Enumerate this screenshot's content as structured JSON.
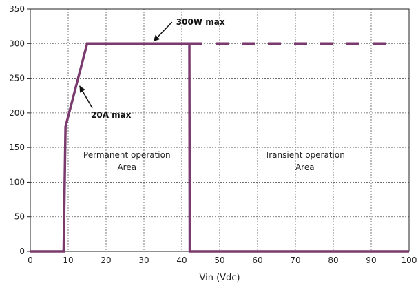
{
  "chart_data": {
    "type": "line",
    "title": "",
    "xlabel": "Vin (Vdc)",
    "ylabel": "",
    "xlim": [
      0,
      100
    ],
    "ylim": [
      0,
      350
    ],
    "xticks": [
      "0",
      "10",
      "20",
      "30",
      "40",
      "50",
      "60",
      "70",
      "80",
      "90",
      "100"
    ],
    "yticks": [
      "0",
      "50",
      "100",
      "150",
      "200",
      "250",
      "300",
      "350"
    ],
    "grid": true,
    "line_color": "#7a3a6e",
    "series": [
      {
        "style": "solid",
        "x": [
          0,
          8.8,
          9.3,
          15,
          42,
          42.1,
          100
        ],
        "y": [
          0,
          0,
          180,
          300,
          300,
          0,
          0
        ]
      },
      {
        "style": "dashed",
        "x": [
          42,
          97
        ],
        "y": [
          300,
          300
        ]
      }
    ],
    "annotations": [
      {
        "text": "300W max",
        "x": 38.5,
        "y": 327,
        "target_x": 32.5,
        "target_y": 303
      },
      {
        "text": "20A max",
        "x": 16,
        "y": 193,
        "target_x": 13,
        "target_y": 239
      }
    ],
    "area_labels": [
      {
        "lines": [
          "Permanent operation",
          "Area"
        ],
        "x": 25.5
      },
      {
        "lines": [
          "Transient operation",
          "Area"
        ],
        "x": 72.5
      }
    ]
  }
}
